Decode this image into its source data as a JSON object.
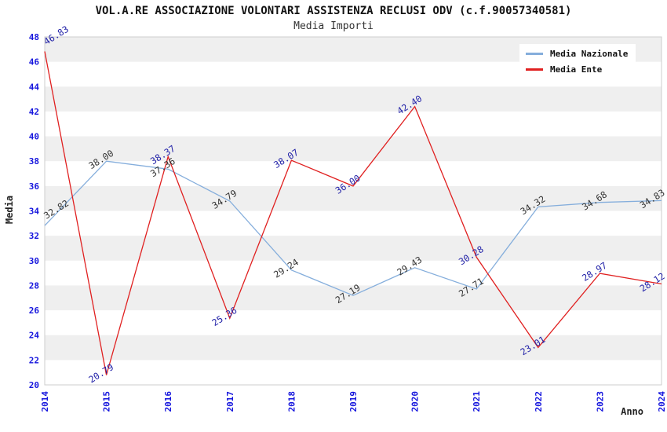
{
  "title": "VOL.A.RE ASSOCIAZIONE VOLONTARI ASSISTENZA RECLUSI ODV (c.f.90057340581)",
  "subtitle": "Media Importi",
  "axes": {
    "x_label": "Anno",
    "y_label": "Media",
    "tick_color": "#1515DD"
  },
  "legend": {
    "position": "top-right",
    "items": [
      {
        "label": "Media Nazionale",
        "color": "#85AEDC"
      },
      {
        "label": "Media Ente",
        "color": "#E02020"
      }
    ]
  },
  "chart_data": {
    "type": "line",
    "title": "VOL.A.RE ASSOCIAZIONE VOLONTARI ASSISTENZA RECLUSI ODV (c.f.90057340581)",
    "subtitle": "Media Importi",
    "xlabel": "Anno",
    "ylabel": "Media",
    "categories": [
      "2014",
      "2015",
      "2016",
      "2017",
      "2018",
      "2019",
      "2020",
      "2021",
      "2022",
      "2023",
      "2024"
    ],
    "series": [
      {
        "name": "Media Nazionale",
        "color": "#85AEDC",
        "label_color": "#333333",
        "values": [
          32.82,
          38.0,
          37.36,
          34.79,
          29.24,
          27.19,
          29.43,
          27.71,
          34.32,
          34.68,
          34.83
        ]
      },
      {
        "name": "Media Ente",
        "color": "#E02020",
        "label_color": "#2222A8",
        "values": [
          46.83,
          20.79,
          38.37,
          25.36,
          38.07,
          36.0,
          42.4,
          30.28,
          23.01,
          28.97,
          28.12
        ]
      }
    ],
    "ylim": [
      20,
      48
    ],
    "y_tick_step": 2,
    "grid": "horizontal-stripes",
    "stripe_color": "#EFEFEF",
    "plot_border_color": "#CCCCCC",
    "legend_position": "top-right"
  }
}
